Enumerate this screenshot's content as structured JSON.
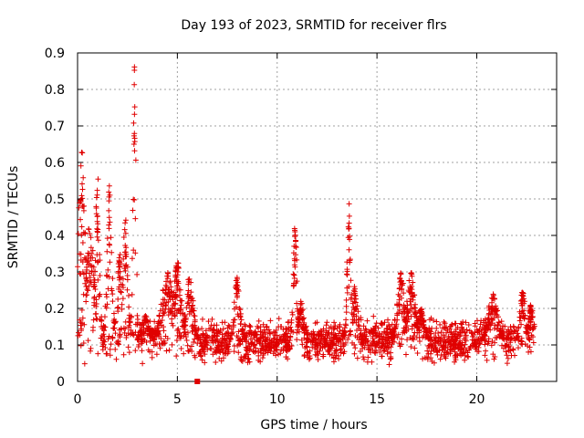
{
  "chart_data": {
    "type": "scatter",
    "title": "Day 193 of 2023, SRMTID for receiver flrs",
    "xlabel": "GPS time / hours",
    "ylabel": "SRMTID / TECUs",
    "xlim": [
      0,
      24
    ],
    "ylim": [
      0,
      0.9
    ],
    "xticks": [
      0,
      5,
      10,
      15,
      20
    ],
    "yticks": [
      0,
      0.1,
      0.2,
      0.3,
      0.4,
      0.5,
      0.6,
      0.7,
      0.8,
      0.9
    ],
    "xtick_labels": [
      "0",
      "5",
      "10",
      "15",
      "20"
    ],
    "ytick_labels": [
      "0",
      "0.1",
      "0.2",
      "0.3",
      "0.4",
      "0.5",
      "0.6",
      "0.7",
      "0.8",
      "0.9"
    ],
    "grid": true,
    "marker": "+",
    "color": "#e00000",
    "square_marker": {
      "x": 6.0,
      "y": 0.0
    },
    "series_profile": {
      "x_range_hours": [
        0,
        22.9
      ],
      "baseline_tecu": 0.11,
      "spread_tecu": 0.05,
      "sample_count": 2400
    },
    "peaks": [
      {
        "x": 0.2,
        "y": 0.63,
        "width": 0.35
      },
      {
        "x": 0.6,
        "y": 0.42,
        "width": 0.5
      },
      {
        "x": 1.0,
        "y": 0.58,
        "width": 0.2
      },
      {
        "x": 1.6,
        "y": 0.54,
        "width": 0.25
      },
      {
        "x": 2.1,
        "y": 0.36,
        "width": 0.3
      },
      {
        "x": 2.4,
        "y": 0.46,
        "width": 0.25
      },
      {
        "x": 2.85,
        "y": 0.88,
        "width": 0.15
      },
      {
        "x": 3.4,
        "y": 0.18,
        "width": 0.4
      },
      {
        "x": 4.5,
        "y": 0.3,
        "width": 0.6
      },
      {
        "x": 5.0,
        "y": 0.33,
        "width": 0.4
      },
      {
        "x": 5.6,
        "y": 0.29,
        "width": 0.4
      },
      {
        "x": 8.0,
        "y": 0.29,
        "width": 0.3
      },
      {
        "x": 10.9,
        "y": 0.43,
        "width": 0.2
      },
      {
        "x": 11.2,
        "y": 0.22,
        "width": 0.3
      },
      {
        "x": 13.6,
        "y": 0.5,
        "width": 0.2
      },
      {
        "x": 13.9,
        "y": 0.26,
        "width": 0.3
      },
      {
        "x": 16.2,
        "y": 0.3,
        "width": 0.4
      },
      {
        "x": 16.7,
        "y": 0.3,
        "width": 0.4
      },
      {
        "x": 17.2,
        "y": 0.2,
        "width": 0.4
      },
      {
        "x": 20.8,
        "y": 0.24,
        "width": 0.5
      },
      {
        "x": 22.3,
        "y": 0.25,
        "width": 0.3
      },
      {
        "x": 22.7,
        "y": 0.21,
        "width": 0.3
      }
    ]
  }
}
